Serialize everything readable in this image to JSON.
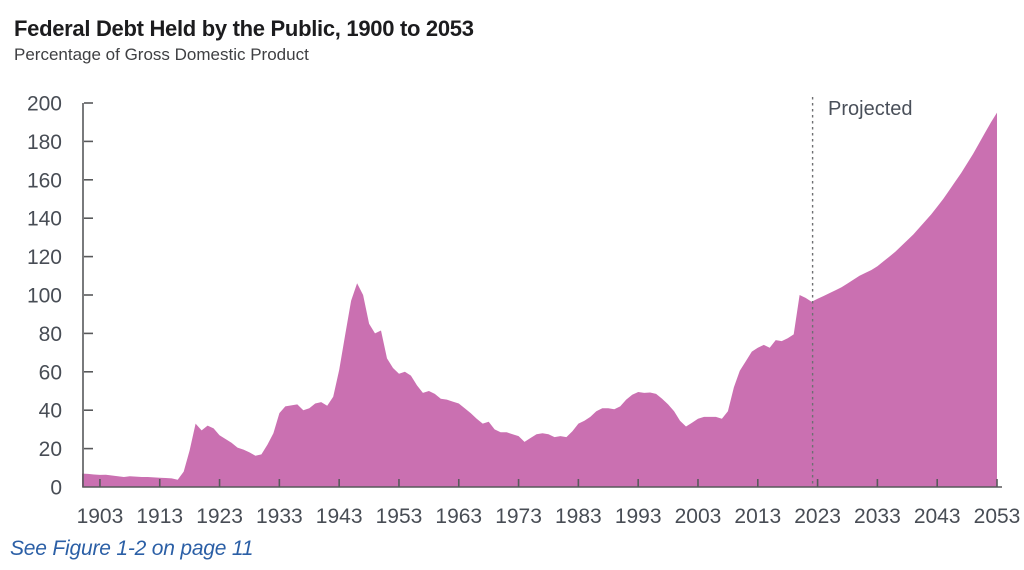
{
  "footer": {
    "text": "See Figure 1-2 on page 11",
    "link_color": "#2B5FA6"
  },
  "chart_data": {
    "type": "area",
    "title": "Federal Debt Held by the Public, 1900 to 2053",
    "subtitle": "Percentage of Gross Domestic Product",
    "xlabel": "",
    "ylabel": "Percentage of Gross Domestic Product",
    "x_min": 1900,
    "x_max": 2053,
    "ylim": [
      0,
      200
    ],
    "y_ticks": [
      0,
      20,
      40,
      60,
      80,
      100,
      120,
      140,
      160,
      180,
      200
    ],
    "x_ticks": [
      1903,
      1913,
      1923,
      1933,
      1943,
      1953,
      1963,
      1973,
      1983,
      1993,
      2003,
      2013,
      2023,
      2033,
      2043,
      2053
    ],
    "grid": "off",
    "legend": "none",
    "projected_label": "Projected",
    "projection_start_year": 2023,
    "area_color": "#CA70B1",
    "axis_color": "#58595B",
    "label_color": "#484D55",
    "divider_color": "#6E6F72",
    "series": [
      {
        "name": "Federal debt held by the public (% of GDP)",
        "start_year": 1900,
        "values": [
          7.0,
          6.8,
          6.5,
          6.3,
          6.4,
          6.0,
          5.6,
          5.2,
          5.6,
          5.4,
          5.2,
          5.2,
          5.0,
          4.8,
          4.7,
          4.5,
          3.8,
          8.0,
          19.0,
          33.0,
          29.5,
          32.0,
          30.5,
          27.0,
          25.0,
          23.0,
          20.5,
          19.5,
          18.0,
          16.3,
          17.0,
          22.0,
          28.0,
          38.5,
          42.0,
          42.5,
          43.0,
          40.0,
          41.0,
          43.5,
          44.2,
          42.3,
          47.0,
          61.0,
          79.0,
          97.0,
          106.1,
          100.0,
          85.0,
          80.0,
          81.5,
          67.0,
          62.0,
          59.0,
          60.0,
          58.0,
          53.0,
          49.0,
          50.0,
          48.5,
          46.0,
          45.5,
          44.5,
          43.5,
          41.0,
          38.5,
          35.5,
          33.0,
          34.0,
          30.0,
          28.5,
          28.5,
          27.5,
          26.5,
          23.5,
          25.5,
          27.5,
          28.0,
          27.5,
          26.0,
          26.5,
          26.0,
          29.0,
          33.0,
          34.5,
          36.5,
          39.5,
          41.0,
          41.0,
          40.5,
          42.0,
          45.5,
          48.0,
          49.5,
          49.0,
          49.2,
          48.5,
          46.0,
          43.0,
          39.5,
          34.5,
          31.5,
          33.5,
          35.5,
          36.5,
          36.5,
          36.5,
          35.5,
          39.5,
          52.0,
          60.5,
          65.5,
          70.5,
          72.5,
          74.0,
          72.5,
          76.5,
          76.0,
          77.5,
          79.5,
          100.0,
          98.5,
          96.5,
          98.0,
          99.5,
          101.0,
          102.5,
          104.0,
          106.0,
          108.0,
          110.0,
          111.5,
          113.0,
          115.0,
          117.5,
          120.0,
          122.5,
          125.5,
          128.5,
          131.5,
          135.0,
          138.5,
          142.0,
          146.0,
          150.0,
          154.5,
          159.0,
          163.5,
          168.5,
          173.5,
          179.0,
          184.5,
          190.0,
          195.0
        ]
      }
    ]
  }
}
